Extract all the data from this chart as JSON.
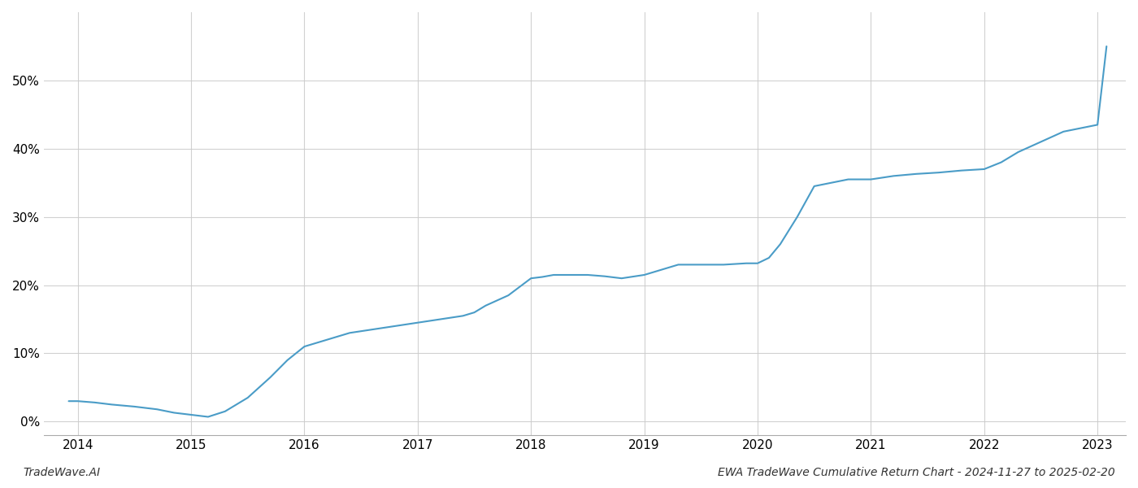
{
  "title": "EWA TradeWave Cumulative Return Chart - 2024-11-27 to 2025-02-20",
  "watermark": "TradeWave.AI",
  "line_color": "#4a9cc7",
  "background_color": "#ffffff",
  "grid_color": "#cccccc",
  "x_values": [
    2013.92,
    2014.0,
    2014.15,
    2014.3,
    2014.5,
    2014.7,
    2014.85,
    2015.0,
    2015.05,
    2015.1,
    2015.15,
    2015.3,
    2015.5,
    2015.7,
    2015.85,
    2016.0,
    2016.1,
    2016.2,
    2016.4,
    2016.6,
    2016.8,
    2017.0,
    2017.2,
    2017.4,
    2017.5,
    2017.6,
    2017.8,
    2018.0,
    2018.1,
    2018.2,
    2018.35,
    2018.5,
    2018.65,
    2018.8,
    2019.0,
    2019.1,
    2019.2,
    2019.3,
    2019.5,
    2019.7,
    2019.9,
    2020.0,
    2020.1,
    2020.2,
    2020.35,
    2020.5,
    2020.65,
    2020.8,
    2021.0,
    2021.2,
    2021.4,
    2021.6,
    2021.8,
    2022.0,
    2022.15,
    2022.3,
    2022.5,
    2022.7,
    2022.85,
    2023.0,
    2023.08
  ],
  "y_values": [
    3.0,
    3.0,
    2.8,
    2.5,
    2.2,
    1.8,
    1.3,
    1.0,
    0.9,
    0.8,
    0.7,
    1.5,
    3.5,
    6.5,
    9.0,
    11.0,
    11.5,
    12.0,
    13.0,
    13.5,
    14.0,
    14.5,
    15.0,
    15.5,
    16.0,
    17.0,
    18.5,
    21.0,
    21.2,
    21.5,
    21.5,
    21.5,
    21.3,
    21.0,
    21.5,
    22.0,
    22.5,
    23.0,
    23.0,
    23.0,
    23.2,
    23.2,
    24.0,
    26.0,
    30.0,
    34.5,
    35.0,
    35.5,
    35.5,
    36.0,
    36.3,
    36.5,
    36.8,
    37.0,
    38.0,
    39.5,
    41.0,
    42.5,
    43.0,
    43.5,
    55.0
  ],
  "xlim": [
    2013.7,
    2023.25
  ],
  "ylim": [
    -2,
    60
  ],
  "yticks": [
    0,
    10,
    20,
    30,
    40,
    50
  ],
  "xticks": [
    2014,
    2015,
    2016,
    2017,
    2018,
    2019,
    2020,
    2021,
    2022,
    2023
  ],
  "xtick_labels": [
    "2014",
    "2015",
    "2016",
    "2017",
    "2018",
    "2019",
    "2020",
    "2021",
    "2022",
    "2023"
  ],
  "line_width": 1.5,
  "figsize": [
    14.0,
    6.0
  ],
  "dpi": 100
}
